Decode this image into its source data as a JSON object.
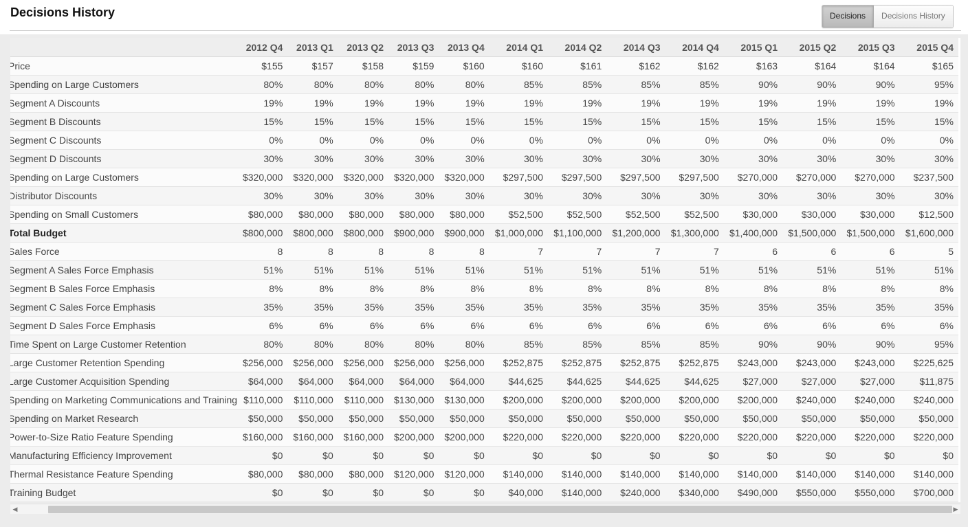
{
  "header": {
    "title": "Decisions History"
  },
  "toggle": {
    "decisions_label": "Decisions",
    "history_label": "Decisions History",
    "active": "Decisions"
  },
  "table": {
    "columns": [
      "2012 Q4",
      "2013 Q1",
      "2013 Q2",
      "2013 Q3",
      "2013 Q4",
      "2014 Q1",
      "2014 Q2",
      "2014 Q3",
      "2014 Q4",
      "2015 Q1",
      "2015 Q2",
      "2015 Q3",
      "2015 Q4"
    ],
    "rows": [
      {
        "label": "Price",
        "bold": false,
        "values": [
          "$155",
          "$157",
          "$158",
          "$159",
          "$160",
          "$160",
          "$161",
          "$162",
          "$162",
          "$163",
          "$164",
          "$164",
          "$165"
        ]
      },
      {
        "label": "Spending on Large Customers",
        "bold": false,
        "values": [
          "80%",
          "80%",
          "80%",
          "80%",
          "80%",
          "85%",
          "85%",
          "85%",
          "85%",
          "90%",
          "90%",
          "90%",
          "95%"
        ]
      },
      {
        "label": "Segment A Discounts",
        "bold": false,
        "values": [
          "19%",
          "19%",
          "19%",
          "19%",
          "19%",
          "19%",
          "19%",
          "19%",
          "19%",
          "19%",
          "19%",
          "19%",
          "19%"
        ]
      },
      {
        "label": "Segment B Discounts",
        "bold": false,
        "values": [
          "15%",
          "15%",
          "15%",
          "15%",
          "15%",
          "15%",
          "15%",
          "15%",
          "15%",
          "15%",
          "15%",
          "15%",
          "15%"
        ]
      },
      {
        "label": "Segment C Discounts",
        "bold": false,
        "values": [
          "0%",
          "0%",
          "0%",
          "0%",
          "0%",
          "0%",
          "0%",
          "0%",
          "0%",
          "0%",
          "0%",
          "0%",
          "0%"
        ]
      },
      {
        "label": "Segment D Discounts",
        "bold": false,
        "values": [
          "30%",
          "30%",
          "30%",
          "30%",
          "30%",
          "30%",
          "30%",
          "30%",
          "30%",
          "30%",
          "30%",
          "30%",
          "30%"
        ]
      },
      {
        "label": "Spending on Large Customers",
        "bold": false,
        "values": [
          "$320,000",
          "$320,000",
          "$320,000",
          "$320,000",
          "$320,000",
          "$297,500",
          "$297,500",
          "$297,500",
          "$297,500",
          "$270,000",
          "$270,000",
          "$270,000",
          "$237,500"
        ]
      },
      {
        "label": "Distributor Discounts",
        "bold": false,
        "values": [
          "30%",
          "30%",
          "30%",
          "30%",
          "30%",
          "30%",
          "30%",
          "30%",
          "30%",
          "30%",
          "30%",
          "30%",
          "30%"
        ]
      },
      {
        "label": "Spending on Small Customers",
        "bold": false,
        "values": [
          "$80,000",
          "$80,000",
          "$80,000",
          "$80,000",
          "$80,000",
          "$52,500",
          "$52,500",
          "$52,500",
          "$52,500",
          "$30,000",
          "$30,000",
          "$30,000",
          "$12,500"
        ]
      },
      {
        "label": "Total Budget",
        "bold": true,
        "values": [
          "$800,000",
          "$800,000",
          "$800,000",
          "$900,000",
          "$900,000",
          "$1,000,000",
          "$1,100,000",
          "$1,200,000",
          "$1,300,000",
          "$1,400,000",
          "$1,500,000",
          "$1,500,000",
          "$1,600,000"
        ]
      },
      {
        "label": "Sales Force",
        "bold": false,
        "values": [
          "8",
          "8",
          "8",
          "8",
          "8",
          "7",
          "7",
          "7",
          "7",
          "6",
          "6",
          "6",
          "5"
        ]
      },
      {
        "label": "Segment A Sales Force Emphasis",
        "bold": false,
        "values": [
          "51%",
          "51%",
          "51%",
          "51%",
          "51%",
          "51%",
          "51%",
          "51%",
          "51%",
          "51%",
          "51%",
          "51%",
          "51%"
        ]
      },
      {
        "label": "Segment B Sales Force Emphasis",
        "bold": false,
        "values": [
          "8%",
          "8%",
          "8%",
          "8%",
          "8%",
          "8%",
          "8%",
          "8%",
          "8%",
          "8%",
          "8%",
          "8%",
          "8%"
        ]
      },
      {
        "label": "Segment C Sales Force Emphasis",
        "bold": false,
        "values": [
          "35%",
          "35%",
          "35%",
          "35%",
          "35%",
          "35%",
          "35%",
          "35%",
          "35%",
          "35%",
          "35%",
          "35%",
          "35%"
        ]
      },
      {
        "label": "Segment D Sales Force Emphasis",
        "bold": false,
        "values": [
          "6%",
          "6%",
          "6%",
          "6%",
          "6%",
          "6%",
          "6%",
          "6%",
          "6%",
          "6%",
          "6%",
          "6%",
          "6%"
        ]
      },
      {
        "label": "Time Spent on Large Customer Retention",
        "bold": false,
        "values": [
          "80%",
          "80%",
          "80%",
          "80%",
          "80%",
          "85%",
          "85%",
          "85%",
          "85%",
          "90%",
          "90%",
          "90%",
          "95%"
        ]
      },
      {
        "label": "Large Customer Retention Spending",
        "bold": false,
        "values": [
          "$256,000",
          "$256,000",
          "$256,000",
          "$256,000",
          "$256,000",
          "$252,875",
          "$252,875",
          "$252,875",
          "$252,875",
          "$243,000",
          "$243,000",
          "$243,000",
          "$225,625"
        ]
      },
      {
        "label": "Large Customer Acquisition Spending",
        "bold": false,
        "values": [
          "$64,000",
          "$64,000",
          "$64,000",
          "$64,000",
          "$64,000",
          "$44,625",
          "$44,625",
          "$44,625",
          "$44,625",
          "$27,000",
          "$27,000",
          "$27,000",
          "$11,875"
        ]
      },
      {
        "label": "Spending on Marketing Communications and Training",
        "bold": false,
        "values": [
          "$110,000",
          "$110,000",
          "$110,000",
          "$130,000",
          "$130,000",
          "$200,000",
          "$200,000",
          "$200,000",
          "$200,000",
          "$200,000",
          "$240,000",
          "$240,000",
          "$240,000"
        ]
      },
      {
        "label": "Spending on Market Research",
        "bold": false,
        "values": [
          "$50,000",
          "$50,000",
          "$50,000",
          "$50,000",
          "$50,000",
          "$50,000",
          "$50,000",
          "$50,000",
          "$50,000",
          "$50,000",
          "$50,000",
          "$50,000",
          "$50,000"
        ]
      },
      {
        "label": "Power-to-Size Ratio Feature Spending",
        "bold": false,
        "values": [
          "$160,000",
          "$160,000",
          "$160,000",
          "$200,000",
          "$200,000",
          "$220,000",
          "$220,000",
          "$220,000",
          "$220,000",
          "$220,000",
          "$220,000",
          "$220,000",
          "$220,000"
        ]
      },
      {
        "label": "Manufacturing Efficiency Improvement",
        "bold": false,
        "values": [
          "$0",
          "$0",
          "$0",
          "$0",
          "$0",
          "$0",
          "$0",
          "$0",
          "$0",
          "$0",
          "$0",
          "$0",
          "$0"
        ]
      },
      {
        "label": "Thermal Resistance Feature Spending",
        "bold": false,
        "values": [
          "$80,000",
          "$80,000",
          "$80,000",
          "$120,000",
          "$120,000",
          "$140,000",
          "$140,000",
          "$140,000",
          "$140,000",
          "$140,000",
          "$140,000",
          "$140,000",
          "$140,000"
        ]
      },
      {
        "label": "Training Budget",
        "bold": false,
        "values": [
          "$0",
          "$0",
          "$0",
          "$0",
          "$0",
          "$40,000",
          "$140,000",
          "$240,000",
          "$340,000",
          "$490,000",
          "$550,000",
          "$550,000",
          "$700,000"
        ]
      }
    ]
  },
  "scrollbar": {
    "left_arrow": "◀",
    "right_arrow": "▶"
  }
}
